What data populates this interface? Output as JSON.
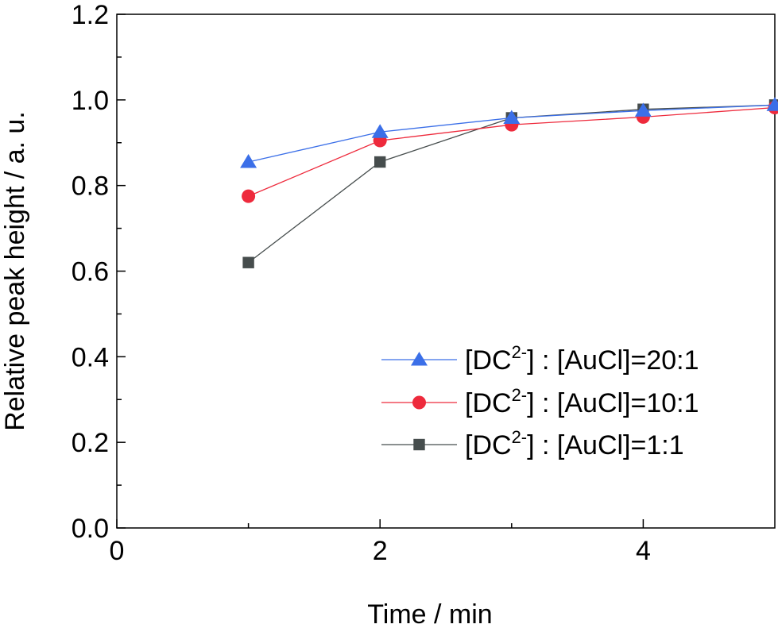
{
  "chart_data": {
    "type": "line",
    "xlabel": "Time / min",
    "ylabel": "Relative peak height / a. u.",
    "xlim": [
      0,
      5
    ],
    "ylim": [
      0.0,
      1.2
    ],
    "x_ticks": [
      "0",
      "2",
      "4"
    ],
    "y_ticks": [
      "0.0",
      "0.2",
      "0.4",
      "0.6",
      "0.8",
      "1.0",
      "1.2"
    ],
    "grid": false,
    "legend_position": "bottom-right",
    "series": [
      {
        "name": "[DC2-] : [AuCl]=20:1",
        "name_parts": {
          "prefix": "[DC",
          "sup": "2-",
          "suffix": "] : [AuCl]=20:1"
        },
        "marker": "triangle",
        "color": "#3b6fe8",
        "x": [
          1,
          2,
          3,
          4,
          5
        ],
        "y": [
          0.855,
          0.925,
          0.958,
          0.975,
          0.988
        ]
      },
      {
        "name": "[DC2-] : [AuCl]=10:1",
        "name_parts": {
          "prefix": "[DC",
          "sup": "2-",
          "suffix": "] : [AuCl]=10:1"
        },
        "marker": "circle",
        "color": "#ee2a3c",
        "x": [
          1,
          2,
          3,
          4,
          5
        ],
        "y": [
          0.775,
          0.905,
          0.942,
          0.96,
          0.982
        ]
      },
      {
        "name": "[DC2-] : [AuCl]=1:1",
        "name_parts": {
          "prefix": "[DC",
          "sup": "2-",
          "suffix": "] : [AuCl]=1:1"
        },
        "marker": "square",
        "color": "#464d4d",
        "x": [
          1,
          2,
          3,
          4,
          5
        ],
        "y": [
          0.62,
          0.855,
          0.958,
          0.978,
          0.988
        ]
      }
    ]
  }
}
